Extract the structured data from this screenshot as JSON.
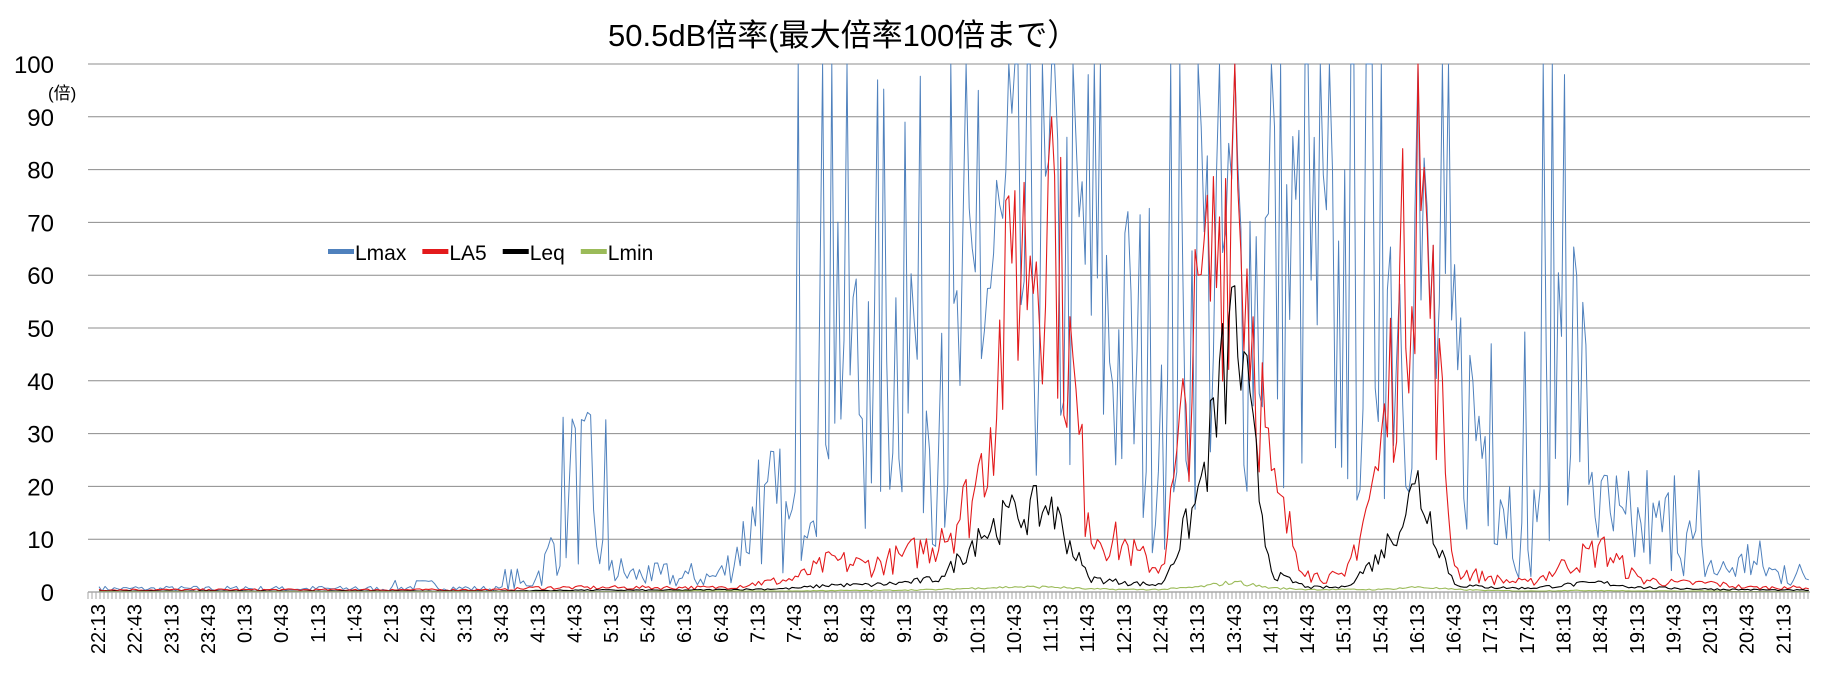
{
  "chart_data": {
    "type": "line",
    "title": "50.5dB倍率(最大倍率100倍まで）",
    "y_unit": "(倍)",
    "xlabel": "",
    "ylabel": "",
    "ylim": [
      0,
      100
    ],
    "yticks": [
      0,
      10,
      20,
      30,
      40,
      50,
      60,
      70,
      80,
      90,
      100
    ],
    "grid": true,
    "legend_position": "upper-left",
    "x": [
      "22:13",
      "22:43",
      "23:13",
      "23:43",
      "0:13",
      "0:43",
      "1:13",
      "1:43",
      "2:13",
      "2:43",
      "3:13",
      "3:43",
      "4:13",
      "4:43",
      "5:13",
      "5:43",
      "6:13",
      "6:43",
      "7:13",
      "7:43",
      "8:13",
      "8:43",
      "9:13",
      "9:43",
      "10:13",
      "10:43",
      "11:13",
      "11:43",
      "12:13",
      "12:43",
      "13:13",
      "13:43",
      "14:13",
      "14:43",
      "15:13",
      "15:43",
      "16:13",
      "16:43",
      "17:13",
      "17:43",
      "18:13",
      "18:43",
      "19:13",
      "19:43",
      "20:13",
      "20:43",
      "21:13"
    ],
    "series": [
      {
        "name": "Lmax",
        "color": "#4f81bd",
        "values": [
          1,
          1,
          1,
          1,
          1,
          1,
          1,
          1,
          1,
          2,
          1,
          1,
          4,
          31,
          6,
          5,
          4,
          5,
          25,
          19,
          100,
          55,
          89,
          49,
          95,
          100,
          100,
          98,
          68,
          43,
          100,
          100,
          100,
          100,
          80,
          100,
          100,
          62,
          47,
          8,
          98,
          21,
          16,
          22,
          6,
          9,
          5
        ]
      },
      {
        "name": "LA5",
        "color": "#e31a1c",
        "values": [
          0.5,
          0.5,
          0.5,
          0.5,
          0.5,
          0.5,
          0.5,
          0.5,
          0.5,
          0.5,
          0.5,
          0.5,
          1,
          1,
          1,
          1,
          1,
          1,
          2,
          3,
          7,
          6,
          8,
          12,
          24,
          76,
          90,
          15,
          10,
          5,
          60,
          100,
          23,
          4,
          3,
          30,
          100,
          5,
          3,
          2,
          6,
          10,
          3,
          2,
          2,
          1,
          1
        ]
      },
      {
        "name": "Leq",
        "color": "#000000",
        "values": [
          0.2,
          0.2,
          0.2,
          0.2,
          0.2,
          0.2,
          0.2,
          0.2,
          0.2,
          0.2,
          0.2,
          0.2,
          0.3,
          0.4,
          0.4,
          0.4,
          0.4,
          0.5,
          0.6,
          0.8,
          1.5,
          1.5,
          2,
          3,
          12,
          17,
          18,
          3,
          2,
          1.5,
          20,
          58,
          4,
          1,
          1,
          8,
          23,
          1.5,
          1,
          0.8,
          1.5,
          2,
          1,
          0.8,
          0.6,
          0.5,
          0.4
        ]
      },
      {
        "name": "Lmin",
        "color": "#9bbb59",
        "values": [
          0.1,
          0.1,
          0.1,
          0.1,
          0.1,
          0.1,
          0.1,
          0.1,
          0.1,
          0.1,
          0.1,
          0.1,
          0.1,
          0.1,
          0.1,
          0.1,
          0.2,
          0.2,
          0.2,
          0.2,
          0.3,
          0.3,
          0.4,
          0.5,
          0.8,
          1,
          1,
          0.6,
          0.5,
          0.5,
          1,
          2,
          0.8,
          0.5,
          0.5,
          0.5,
          1,
          0.5,
          0.3,
          0.2,
          0.3,
          0.3,
          0.2,
          0.2,
          0.2,
          0.1,
          0.1
        ]
      }
    ]
  }
}
